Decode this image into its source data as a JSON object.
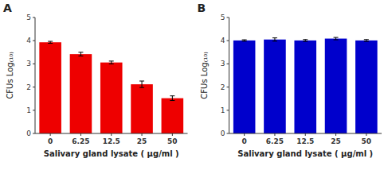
{
  "chart_data": [
    {
      "type": "bar",
      "title": "A",
      "categories": [
        "0",
        "6.25",
        "12.5",
        "25",
        "50"
      ],
      "values": [
        3.93,
        3.42,
        3.06,
        2.12,
        1.52
      ],
      "errors": [
        0.04,
        0.08,
        0.06,
        0.14,
        0.1
      ],
      "color": "#EE0000",
      "xlabel": "Salivary gland lysate ( μg/ml )",
      "ylabel": "CFUs Log₍₁₀₎",
      "ylim": [
        0,
        5
      ],
      "yticks": [
        0,
        1,
        2,
        3,
        4,
        5
      ],
      "grid": false
    },
    {
      "type": "bar",
      "title": "B",
      "categories": [
        "0",
        "6.25",
        "12.5",
        "25",
        "50"
      ],
      "values": [
        4.01,
        4.05,
        4.01,
        4.09,
        4.01
      ],
      "errors": [
        0.03,
        0.07,
        0.04,
        0.05,
        0.04
      ],
      "color": "#0000CC",
      "xlabel": "Salivary gland lysate ( μg/ml )",
      "ylabel": "CFUs Log₍₁₀₎",
      "ylim": [
        0,
        5
      ],
      "yticks": [
        0,
        1,
        2,
        3,
        4,
        5
      ],
      "grid": false
    }
  ]
}
